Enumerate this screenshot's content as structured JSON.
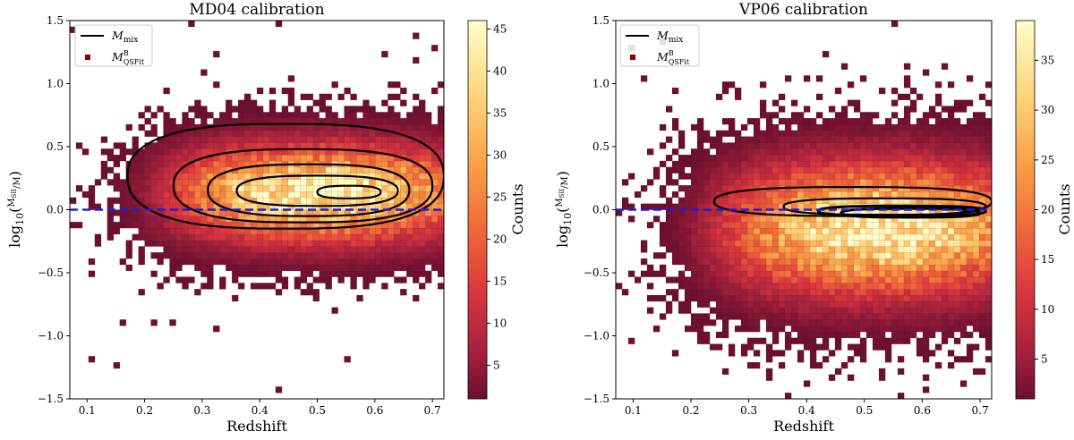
{
  "chart_data": [
    {
      "type": "heatmap",
      "title": "MD04 calibration",
      "xlabel": "Redshift",
      "ylabel": "log10(M_SII / M)",
      "xlim": [
        0.07,
        0.72
      ],
      "ylim": [
        -1.5,
        1.5
      ],
      "xticks": [
        "0.1",
        "0.2",
        "0.3",
        "0.4",
        "0.5",
        "0.6",
        "0.7"
      ],
      "yticks": [
        "−1.5",
        "−1.0",
        "−0.5",
        "0.0",
        "0.5",
        "1.0",
        "1.5"
      ],
      "colorbar": {
        "label": "Counts",
        "min": 1,
        "max": 46,
        "ticks": [
          "5",
          "10",
          "15",
          "20",
          "25",
          "30",
          "35",
          "40",
          "45"
        ]
      },
      "reference_line": {
        "y": 0.0,
        "style": "dashed",
        "color": "#1f1fd8"
      },
      "legend": {
        "placement": "top-left",
        "entries": [
          "M_mix",
          "M^B_QSFit"
        ]
      },
      "density": {
        "center_x": 0.5,
        "center_y": 0.13,
        "peak_counts": 45,
        "spread_y": 0.16
      },
      "contours": [
        {
          "level": 1,
          "x_range": [
            0.17,
            0.72
          ],
          "y_range": [
            -0.15,
            0.68
          ]
        },
        {
          "level": 2,
          "x_range": [
            0.25,
            0.7
          ],
          "y_range": [
            -0.1,
            0.48
          ]
        },
        {
          "level": 3,
          "x_range": [
            0.31,
            0.66
          ],
          "y_range": [
            -0.05,
            0.36
          ]
        },
        {
          "level": 4,
          "x_range": [
            0.36,
            0.64
          ],
          "y_range": [
            0.03,
            0.27
          ]
        },
        {
          "level": 5,
          "x_range": [
            0.5,
            0.61
          ],
          "y_range": [
            0.09,
            0.19
          ]
        }
      ]
    },
    {
      "type": "heatmap",
      "title": "VP06 calibration",
      "xlabel": "Redshift",
      "ylabel": "log10(M_SII / M)",
      "xlim": [
        0.07,
        0.72
      ],
      "ylim": [
        -1.5,
        1.5
      ],
      "xticks": [
        "0.1",
        "0.2",
        "0.3",
        "0.4",
        "0.5",
        "0.6",
        "0.7"
      ],
      "yticks": [
        "−1.5",
        "−1.0",
        "−0.5",
        "0.0",
        "0.5",
        "1.0",
        "1.5"
      ],
      "colorbar": {
        "label": "Counts",
        "min": 1,
        "max": 39,
        "ticks": [
          "5",
          "10",
          "15",
          "20",
          "25",
          "30",
          "35"
        ]
      },
      "reference_line": {
        "y": 0.0,
        "style": "dashed",
        "color": "#1f1fd8"
      },
      "legend": {
        "placement": "top-left",
        "entries": [
          "M_mix",
          "M^B_QSFit"
        ]
      },
      "density": {
        "center_x": 0.52,
        "center_y": -0.15,
        "peak_counts": 38,
        "spread_y": 0.22
      },
      "contours": [
        {
          "level": 1,
          "x_range": [
            0.24,
            0.72
          ],
          "y_range": [
            -0.05,
            0.18
          ]
        },
        {
          "level": 2,
          "x_range": [
            0.36,
            0.71
          ],
          "y_range": [
            -0.04,
            0.09
          ]
        },
        {
          "level": 3,
          "x_range": [
            0.42,
            0.71
          ],
          "y_range": [
            -0.05,
            0.03
          ]
        },
        {
          "level": 4,
          "x_range": [
            0.46,
            0.7
          ],
          "y_range": [
            -0.06,
            0.01
          ]
        }
      ]
    }
  ]
}
